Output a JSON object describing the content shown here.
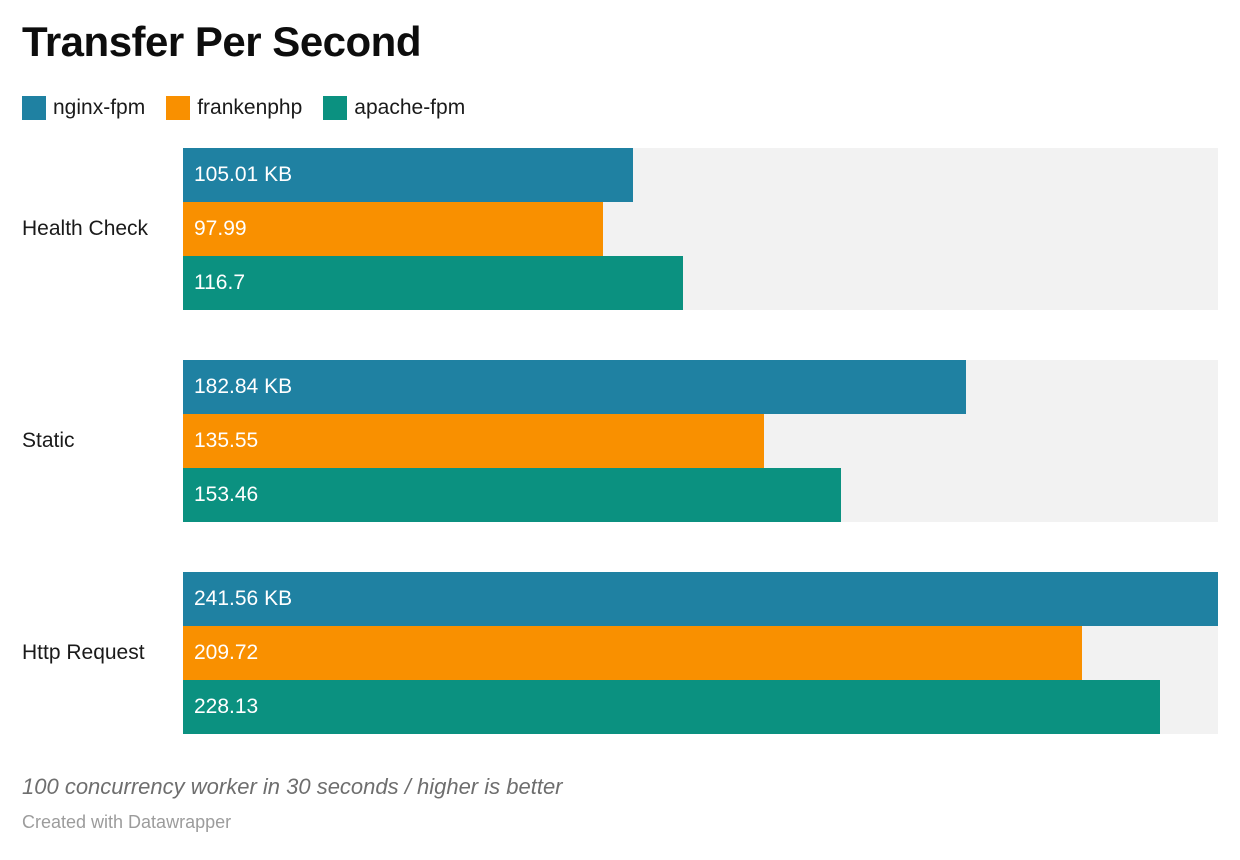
{
  "header": {
    "title": "Transfer Per Second"
  },
  "legend": {
    "items": [
      {
        "label": "nginx-fpm",
        "color": "#1f81a2"
      },
      {
        "label": "frankenphp",
        "color": "#f99000"
      },
      {
        "label": "apache-fpm",
        "color": "#0b9180"
      }
    ]
  },
  "chart_data": {
    "type": "bar",
    "orientation": "horizontal",
    "title": "Transfer Per Second",
    "unit": "KB",
    "categories": [
      "Health Check",
      "Static",
      "Http Request"
    ],
    "series": [
      {
        "name": "nginx-fpm",
        "color": "#1f81a2",
        "values": [
          105.01,
          182.84,
          241.56
        ]
      },
      {
        "name": "frankenphp",
        "color": "#f99000",
        "values": [
          97.99,
          135.55,
          209.72
        ]
      },
      {
        "name": "apache-fpm",
        "color": "#0b9180",
        "values": [
          116.7,
          153.46,
          228.13
        ]
      }
    ],
    "value_labels": [
      [
        "105.01 KB",
        "97.99",
        "116.7"
      ],
      [
        "182.84 KB",
        "135.55",
        "153.46"
      ],
      [
        "241.56 KB",
        "209.72",
        "228.13"
      ]
    ],
    "axis_max": 241.56,
    "grid": false,
    "legend_position": "top",
    "track_color": "#f2f2f2"
  },
  "footer": {
    "note": "100 concurrency worker in 30 seconds / higher is better",
    "attribution": "Created with Datawrapper"
  },
  "colors": {
    "background": "#ffffff",
    "text": "#1a1a1a",
    "bar_label": "#ffffff",
    "track": "#f2f2f2",
    "note": "#6e6e6e",
    "attribution": "#9c9c9c"
  }
}
